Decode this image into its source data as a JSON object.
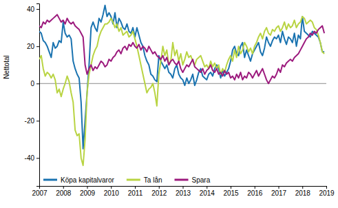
{
  "chart_data": {
    "type": "line",
    "y_label": "Nettotal",
    "x": [
      2007,
      2007.083,
      2007.167,
      2007.25,
      2007.333,
      2007.417,
      2007.5,
      2007.583,
      2007.667,
      2007.75,
      2007.833,
      2007.917,
      2008,
      2008.083,
      2008.167,
      2008.25,
      2008.333,
      2008.417,
      2008.5,
      2008.583,
      2008.667,
      2008.75,
      2008.833,
      2008.917,
      2009,
      2009.083,
      2009.167,
      2009.25,
      2009.333,
      2009.417,
      2009.5,
      2009.583,
      2009.667,
      2009.75,
      2009.833,
      2009.917,
      2010,
      2010.083,
      2010.167,
      2010.25,
      2010.333,
      2010.417,
      2010.5,
      2010.583,
      2010.667,
      2010.75,
      2010.833,
      2010.917,
      2011,
      2011.083,
      2011.167,
      2011.25,
      2011.333,
      2011.417,
      2011.5,
      2011.583,
      2011.667,
      2011.75,
      2011.833,
      2011.917,
      2012,
      2012.083,
      2012.167,
      2012.25,
      2012.333,
      2012.417,
      2012.5,
      2012.583,
      2012.667,
      2012.75,
      2012.833,
      2012.917,
      2013,
      2013.083,
      2013.167,
      2013.25,
      2013.333,
      2013.417,
      2013.5,
      2013.583,
      2013.667,
      2013.75,
      2013.833,
      2013.917,
      2014,
      2014.083,
      2014.167,
      2014.25,
      2014.333,
      2014.417,
      2014.5,
      2014.583,
      2014.667,
      2014.75,
      2014.833,
      2014.917,
      2015,
      2015.083,
      2015.167,
      2015.25,
      2015.333,
      2015.417,
      2015.5,
      2015.583,
      2015.667,
      2015.75,
      2015.833,
      2015.917,
      2016,
      2016.083,
      2016.167,
      2016.25,
      2016.333,
      2016.417,
      2016.5,
      2016.583,
      2016.667,
      2016.75,
      2016.833,
      2016.917,
      2017,
      2017.083,
      2017.167,
      2017.25,
      2017.333,
      2017.417,
      2017.5,
      2017.583,
      2017.667,
      2017.75,
      2017.833,
      2017.917,
      2018,
      2018.083,
      2018.167,
      2018.25,
      2018.333,
      2018.417,
      2018.5,
      2018.583,
      2018.667,
      2018.75,
      2018.833,
      2018.917
    ],
    "series": [
      {
        "name": "Köpa kapitalvaror",
        "color": "#1a73b0",
        "values": [
          28,
          27,
          23,
          22,
          20,
          17,
          14,
          22,
          19,
          20,
          23,
          22,
          33,
          27,
          25,
          26,
          24,
          12,
          8,
          5,
          3,
          -10,
          -35,
          -20,
          -5,
          10,
          30,
          33,
          30,
          28,
          35,
          33,
          37,
          42,
          36,
          38,
          36,
          32,
          38,
          30,
          35,
          33,
          30,
          29,
          32,
          28,
          27,
          30,
          25,
          30,
          26,
          22,
          20,
          15,
          12,
          10,
          5,
          4,
          2,
          1,
          15,
          12,
          10,
          8,
          10,
          6,
          5,
          3,
          8,
          10,
          5,
          3,
          2,
          -1,
          3,
          0,
          2,
          5,
          -1,
          2,
          6,
          8,
          4,
          3,
          2,
          5,
          6,
          4,
          8,
          10,
          8,
          3,
          7,
          4,
          6,
          8,
          12,
          18,
          20,
          16,
          15,
          20,
          22,
          14,
          18,
          15,
          12,
          16,
          18,
          20,
          22,
          17,
          15,
          19,
          25,
          22,
          20,
          23,
          25,
          24,
          26,
          22,
          28,
          24,
          21,
          25,
          24,
          22,
          27,
          20,
          26,
          24,
          36,
          28,
          27,
          26,
          25,
          28,
          27,
          26,
          25,
          22,
          17,
          17
        ]
      },
      {
        "name": "Ta lån",
        "color": "#b9d443",
        "values": [
          13,
          15,
          8,
          4,
          6,
          5,
          3,
          5,
          2,
          -5,
          -3,
          -7,
          -3,
          0,
          4,
          1,
          -5,
          -10,
          -25,
          -28,
          -27,
          -40,
          -44,
          -30,
          -5,
          5,
          10,
          15,
          18,
          20,
          25,
          28,
          30,
          32,
          32,
          33,
          35,
          33,
          30,
          32,
          28,
          30,
          26,
          27,
          28,
          25,
          26,
          28,
          24,
          20,
          15,
          10,
          5,
          0,
          -5,
          -3,
          -2,
          0,
          -5,
          -12,
          5,
          12,
          20,
          15,
          18,
          10,
          12,
          22,
          15,
          18,
          12,
          16,
          10,
          13,
          17,
          14,
          15,
          12,
          10,
          13,
          14,
          15,
          12,
          9,
          10,
          8,
          12,
          9,
          11,
          8,
          10,
          5,
          8,
          6,
          10,
          13,
          15,
          12,
          18,
          14,
          20,
          16,
          18,
          22,
          20,
          17,
          19,
          16,
          20,
          22,
          25,
          27,
          24,
          28,
          30,
          27,
          26,
          29,
          28,
          30,
          31,
          28,
          30,
          33,
          29,
          32,
          30,
          31,
          34,
          30,
          32,
          33,
          36,
          35,
          32,
          33,
          34,
          33,
          30,
          29,
          26,
          22,
          17,
          16
        ]
      },
      {
        "name": "Spara",
        "color": "#9c1a7d",
        "values": [
          31,
          30,
          33,
          32,
          34,
          33,
          34,
          35,
          36,
          37,
          35,
          33,
          34,
          32,
          35,
          33,
          32,
          33,
          31,
          30,
          29,
          27,
          25,
          10,
          5,
          8,
          10,
          7,
          9,
          8,
          10,
          12,
          11,
          9,
          10,
          13,
          12,
          14,
          15,
          17,
          18,
          16,
          19,
          20,
          18,
          21,
          20,
          22,
          20,
          19,
          21,
          18,
          20,
          19,
          17,
          20,
          18,
          16,
          17,
          15,
          14,
          13,
          15,
          12,
          14,
          10,
          12,
          13,
          11,
          10,
          12,
          8,
          6,
          8,
          10,
          9,
          11,
          13,
          9,
          8,
          7,
          6,
          8,
          5,
          7,
          8,
          10,
          7,
          6,
          8,
          5,
          6,
          4,
          7,
          5,
          6,
          3,
          4,
          2,
          5,
          3,
          6,
          2,
          4,
          3,
          6,
          5,
          3,
          5,
          7,
          4,
          6,
          8,
          5,
          2,
          0,
          2,
          4,
          3,
          5,
          8,
          6,
          10,
          9,
          11,
          12,
          13,
          12,
          14,
          15,
          16,
          18,
          20,
          22,
          24,
          25,
          27,
          26,
          28,
          27,
          29,
          30,
          31,
          27
        ]
      }
    ],
    "xlim": [
      2007,
      2019
    ],
    "xticks": [
      2007,
      2008,
      2009,
      2010,
      2011,
      2012,
      2013,
      2014,
      2015,
      2016,
      2017,
      2018,
      2019
    ],
    "ylim": [
      -55,
      43
    ],
    "yticks": [
      -40,
      -20,
      0,
      20,
      40
    ],
    "grid": false,
    "legend": "bottom-left"
  }
}
